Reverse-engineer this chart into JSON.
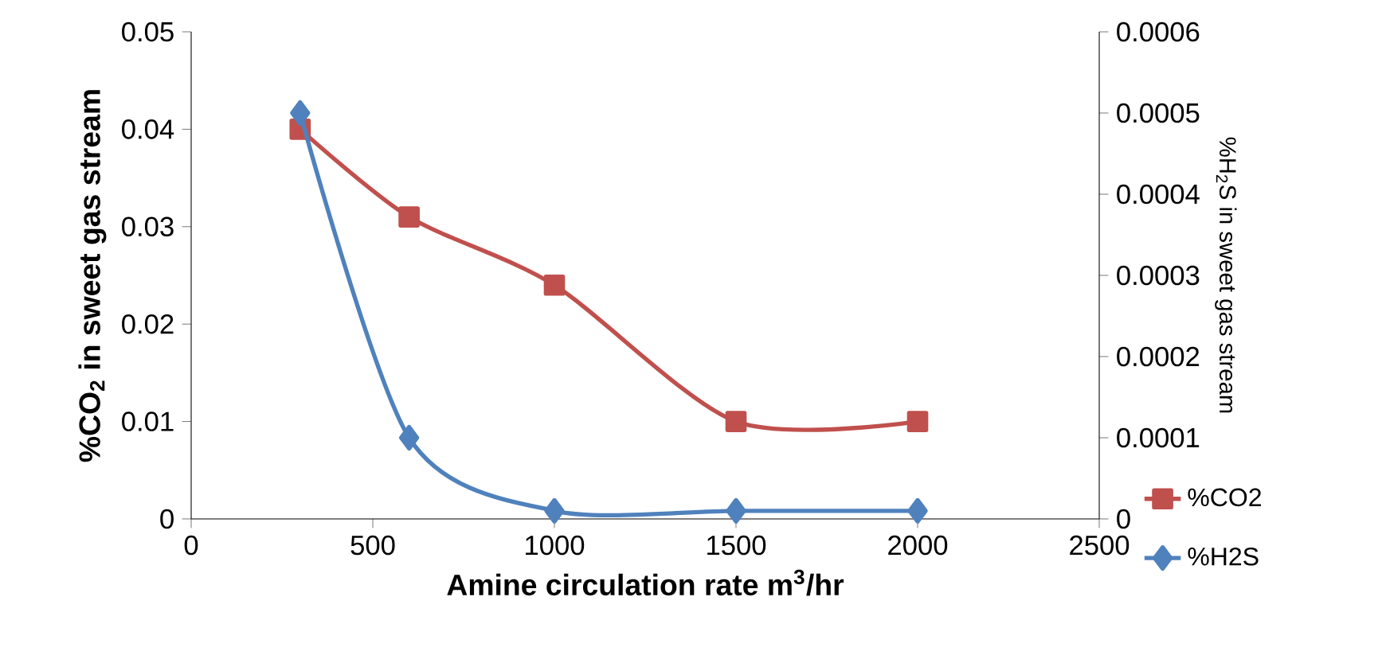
{
  "chart_data": {
    "type": "line",
    "xlabel": "Amine circulation rate m$^{3}$/hr",
    "ylabel": "%CO$_{2}$ in sweet gas stream",
    "y2label": "%H$_{2}$S in sweet gas stream",
    "x": [
      300,
      600,
      1000,
      1500,
      2000
    ],
    "series": [
      {
        "name": "%CO2",
        "color": "#c0504d",
        "marker": "square",
        "values": [
          0.04,
          0.031,
          0.024,
          0.01,
          0.01
        ]
      },
      {
        "name": "%H2S",
        "color": "#4f81bd",
        "marker": "diamond",
        "axis": "y2",
        "values": [
          0.0005,
          0.0001,
          1e-05,
          1e-05,
          1e-05
        ]
      }
    ],
    "xlim": [
      0,
      2500
    ],
    "xticks": [
      0,
      500,
      1000,
      1500,
      2000,
      2500
    ],
    "ylim": [
      0,
      0.05
    ],
    "yticks": [
      0,
      0.01,
      0.02,
      0.03,
      0.04,
      0.05
    ],
    "y2lim": [
      0,
      0.0006
    ],
    "y2ticks": [
      0,
      0.0001,
      0.0002,
      0.0003,
      0.0004,
      0.0005,
      0.0006
    ],
    "legend": "bottom right",
    "grid": false,
    "line_style": "solid"
  }
}
